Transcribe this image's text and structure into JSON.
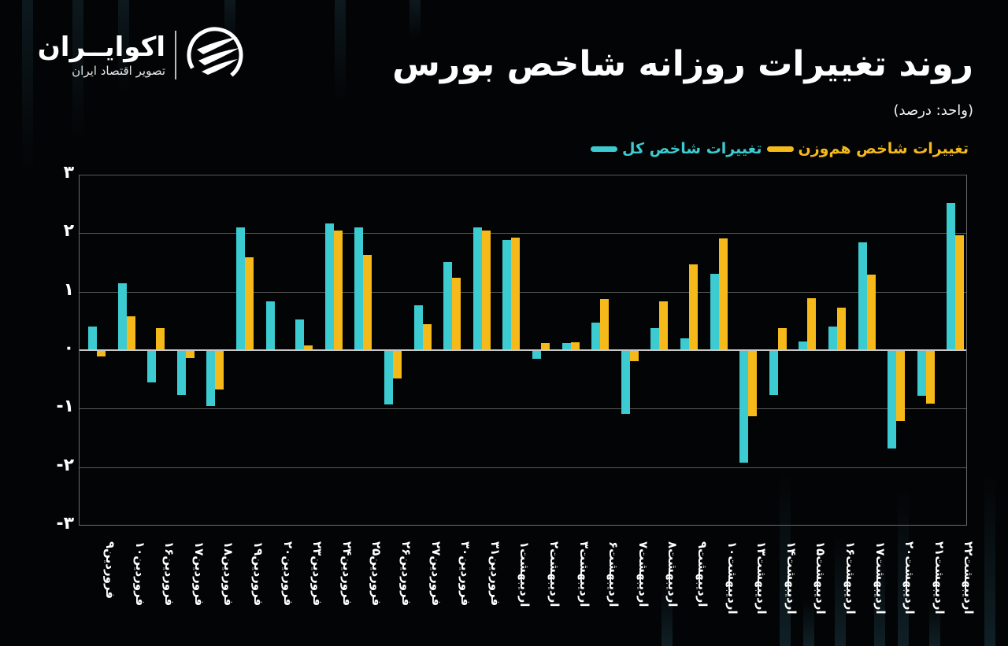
{
  "header": {
    "title": "روند تغییرات روزانه شاخص بورس",
    "unit": "(واحد: درصد)"
  },
  "logo": {
    "name": "اکوایــران",
    "subtitle": "تصویر اقتصاد ایران"
  },
  "legend": {
    "items": [
      {
        "label": "تغییرات شاخص کل",
        "color": "#3ccbd0"
      },
      {
        "label": "تغییرات شاخص هم‌وزن",
        "color": "#f5b91a"
      }
    ]
  },
  "colors": {
    "background": "#030405",
    "series_total": "#3ccbd0",
    "series_equal": "#f5b91a",
    "grid": "#5a5a5a",
    "zero_line": "#c8c8c8"
  },
  "chart_data": {
    "type": "bar",
    "title": "روند تغییرات روزانه شاخص بورس",
    "subtitle": "(واحد: درصد)",
    "xlabel": "",
    "ylabel": "درصد",
    "ylim": [
      -3,
      3
    ],
    "yticks": [
      {
        "value": 3,
        "label": "۳"
      },
      {
        "value": 2,
        "label": "۲"
      },
      {
        "value": 1,
        "label": "۱"
      },
      {
        "value": 0,
        "label": "۰"
      },
      {
        "value": -1,
        "label": "-۱"
      },
      {
        "value": -2,
        "label": "-۲"
      },
      {
        "value": -3,
        "label": "-۳"
      }
    ],
    "grid": true,
    "legend_position": "top-right",
    "categories": [
      "فروردین۹",
      "فروردین۱۰",
      "فروردین۱۶",
      "فروردین۱۷",
      "فروردین۱۸",
      "فروردین۱۹",
      "فروردین۲۰",
      "فروردین۲۳",
      "فروردین۲۴",
      "فروردین۲۵",
      "فروردین۲۶",
      "فروردین۲۷",
      "فروردین۳۰",
      "فروردین۳۱",
      "اردیبهشت۱",
      "اردیبهشت۲",
      "اردیبهشت۳",
      "اردیبهشت۶",
      "اردیبهشت۷",
      "اردیبهشت۸",
      "اردیبهشت۹",
      "اردیبهشت۱۰",
      "اردیبهشت۱۳",
      "اردیبهشت۱۴",
      "اردیبهشت۱۵",
      "اردیبهشت۱۶",
      "اردیبهشت۱۷",
      "اردیبهشت۲۰",
      "اردیبهشت۲۱",
      "اردیبهشت۲۲"
    ],
    "series": [
      {
        "name": "تغییرات شاخص کل",
        "color": "#3ccbd0",
        "values": [
          0.4,
          1.14,
          -0.55,
          -0.77,
          -0.96,
          2.1,
          0.84,
          0.52,
          2.16,
          2.1,
          -0.93,
          0.77,
          1.51,
          2.1,
          1.88,
          -0.15,
          0.12,
          0.47,
          -1.09,
          0.38,
          0.2,
          1.31,
          -1.93,
          -0.77,
          0.15,
          0.4,
          1.84,
          -1.68,
          -0.78,
          2.52
        ]
      },
      {
        "name": "تغییرات شاخص هم‌وزن",
        "color": "#f5b91a",
        "values": [
          -0.11,
          0.58,
          0.37,
          -0.14,
          -0.67,
          1.59,
          0.02,
          0.08,
          2.04,
          1.63,
          -0.48,
          0.44,
          1.24,
          2.04,
          1.93,
          0.12,
          0.13,
          0.87,
          -0.19,
          0.84,
          1.46,
          1.91,
          -1.13,
          0.38,
          0.89,
          0.72,
          1.29,
          -1.21,
          -0.91,
          1.97
        ]
      }
    ]
  }
}
